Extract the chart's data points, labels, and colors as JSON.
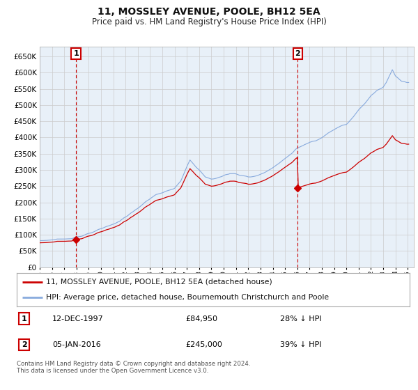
{
  "title": "11, MOSSLEY AVENUE, POOLE, BH12 5EA",
  "subtitle": "Price paid vs. HM Land Registry's House Price Index (HPI)",
  "legend_line1": "11, MOSSLEY AVENUE, POOLE, BH12 5EA (detached house)",
  "legend_line2": "HPI: Average price, detached house, Bournemouth Christchurch and Poole",
  "annotation1_label": "1",
  "annotation1_date": "12-DEC-1997",
  "annotation1_price": "£84,950",
  "annotation1_hpi": "28% ↓ HPI",
  "annotation2_label": "2",
  "annotation2_date": "05-JAN-2016",
  "annotation2_price": "£245,000",
  "annotation2_hpi": "39% ↓ HPI",
  "footer": "Contains HM Land Registry data © Crown copyright and database right 2024.\nThis data is licensed under the Open Government Licence v3.0.",
  "sale1_x": 1997.958,
  "sale1_y": 84950,
  "sale2_x": 2016.04,
  "sale2_y": 245000,
  "price_line_color": "#cc0000",
  "hpi_line_color": "#88aadd",
  "sale_marker_color": "#cc0000",
  "annotation_box_color": "#cc0000",
  "background_color": "#ffffff",
  "chart_bg_color": "#e8f0f8",
  "grid_color": "#cccccc",
  "ylim": [
    0,
    680000
  ],
  "xlim_start": 1995.0,
  "xlim_end": 2025.5,
  "hpi_key_years": [
    1995.0,
    1995.5,
    1996.0,
    1996.5,
    1997.0,
    1997.5,
    1998.0,
    1998.5,
    1999.0,
    1999.5,
    2000.0,
    2000.5,
    2001.0,
    2001.5,
    2002.0,
    2002.5,
    2003.0,
    2003.5,
    2004.0,
    2004.5,
    2005.0,
    2005.5,
    2006.0,
    2006.5,
    2007.0,
    2007.25,
    2007.5,
    2008.0,
    2008.5,
    2009.0,
    2009.5,
    2010.0,
    2010.5,
    2011.0,
    2011.5,
    2012.0,
    2012.5,
    2013.0,
    2013.5,
    2014.0,
    2014.5,
    2015.0,
    2015.5,
    2016.0,
    2016.5,
    2017.0,
    2017.5,
    2018.0,
    2018.5,
    2019.0,
    2019.5,
    2020.0,
    2020.5,
    2021.0,
    2021.5,
    2022.0,
    2022.5,
    2023.0,
    2023.25,
    2023.5,
    2023.75,
    2024.0,
    2024.5,
    2025.0
  ],
  "hpi_key_vals": [
    82000,
    83000,
    84000,
    85000,
    87000,
    89000,
    93000,
    97000,
    103000,
    110000,
    118000,
    126000,
    133000,
    142000,
    155000,
    168000,
    182000,
    197000,
    212000,
    224000,
    230000,
    236000,
    244000,
    265000,
    310000,
    330000,
    320000,
    300000,
    278000,
    272000,
    275000,
    282000,
    290000,
    288000,
    283000,
    278000,
    280000,
    286000,
    296000,
    308000,
    320000,
    335000,
    350000,
    368000,
    375000,
    385000,
    390000,
    400000,
    415000,
    425000,
    435000,
    440000,
    460000,
    485000,
    505000,
    530000,
    545000,
    555000,
    570000,
    590000,
    610000,
    590000,
    575000,
    570000
  ]
}
